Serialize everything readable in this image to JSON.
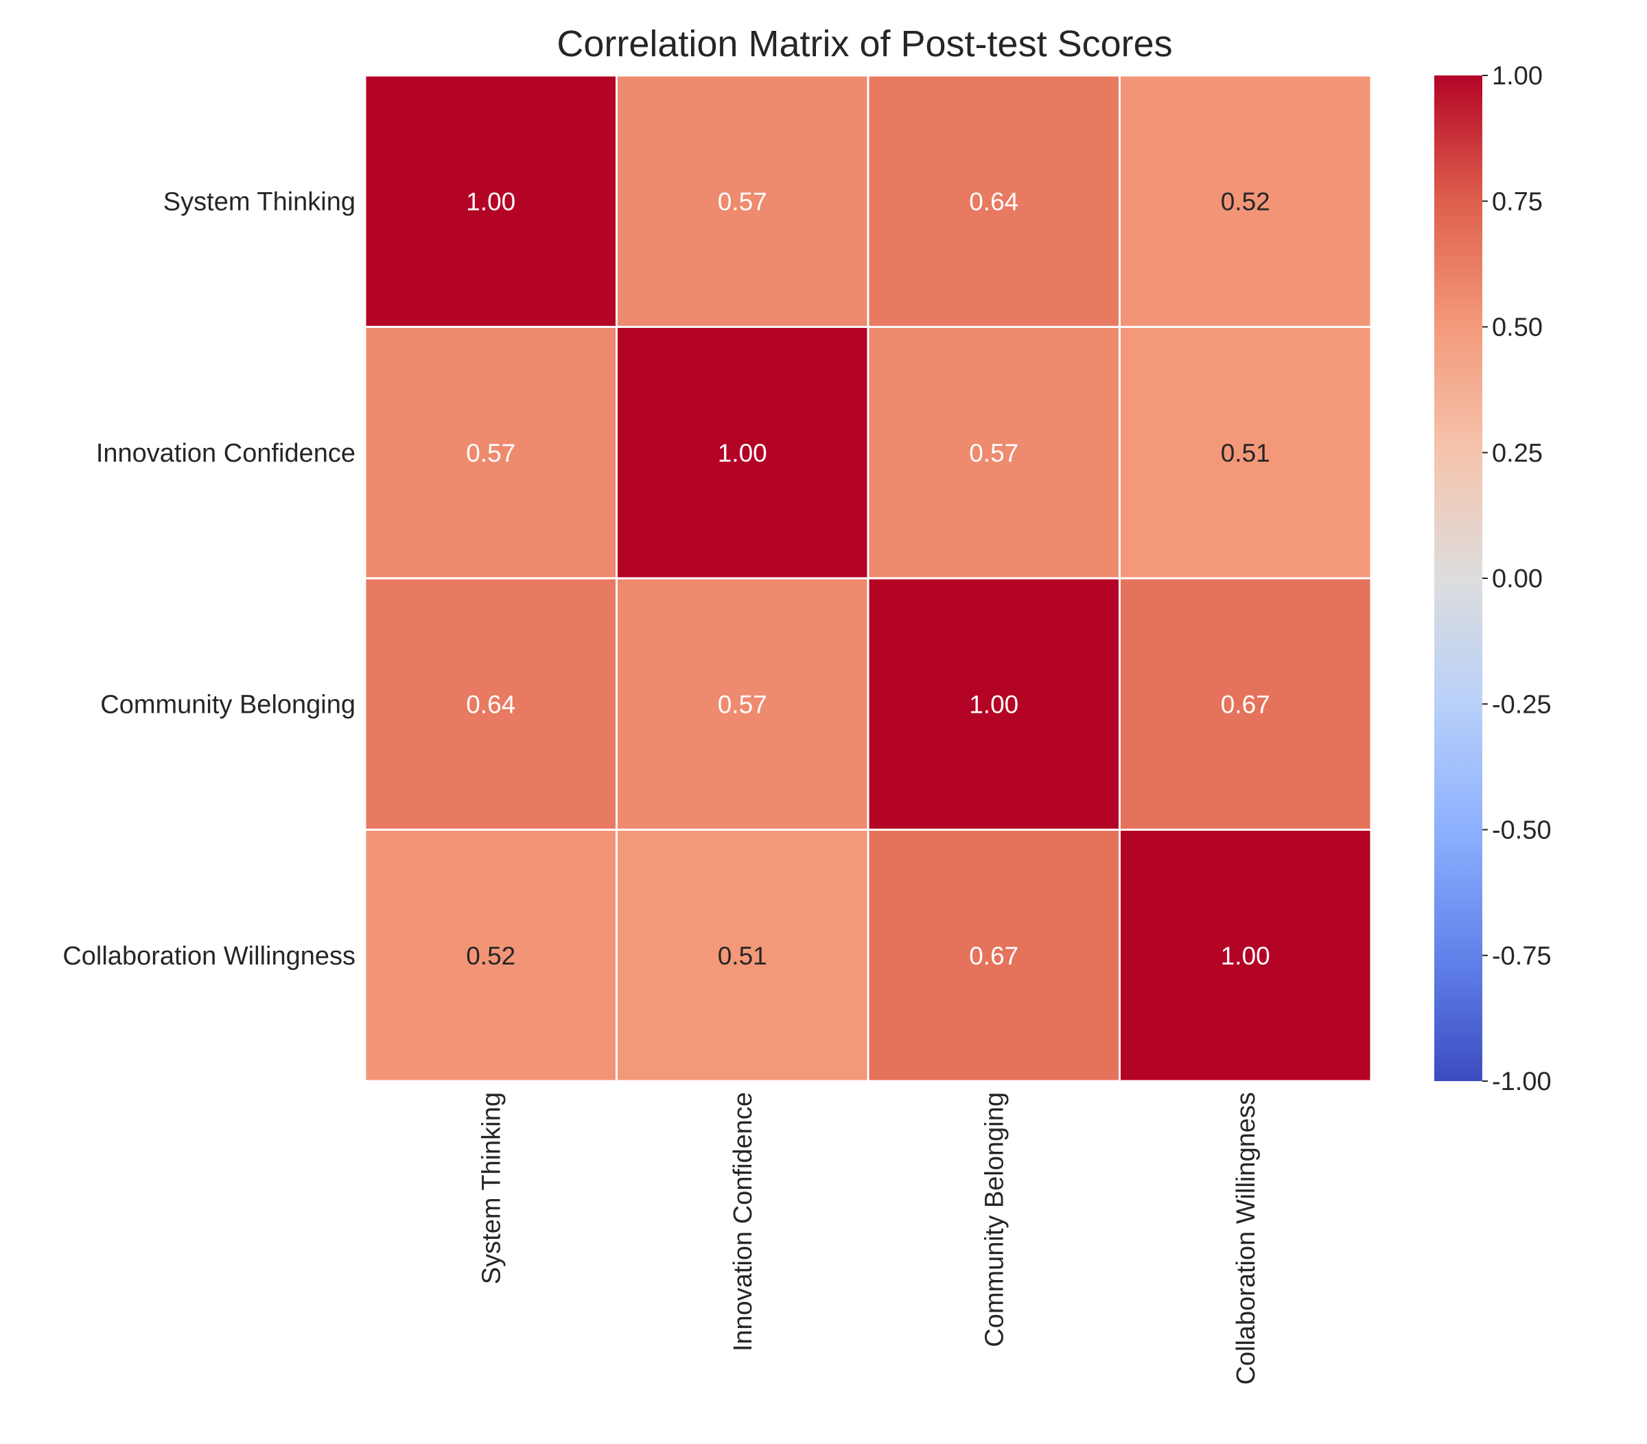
{
  "chart_data": {
    "type": "heatmap",
    "title": "Correlation Matrix of Post-test Scores",
    "rows": [
      "System Thinking",
      "Innovation Confidence",
      "Community Belonging",
      "Collaboration Willingness"
    ],
    "columns": [
      "System Thinking",
      "Innovation Confidence",
      "Community Belonging",
      "Collaboration Willingness"
    ],
    "values": [
      [
        1.0,
        0.57,
        0.64,
        0.52
      ],
      [
        0.57,
        1.0,
        0.57,
        0.51
      ],
      [
        0.64,
        0.57,
        1.0,
        0.67
      ],
      [
        0.52,
        0.51,
        0.67,
        1.0
      ]
    ],
    "value_format": "0.00",
    "colorbar": {
      "range": [
        -1.0,
        1.0
      ],
      "ticks": [
        "1.00",
        "0.75",
        "0.50",
        "0.25",
        "0.00",
        "-0.25",
        "-0.50",
        "-0.75",
        "-1.00"
      ],
      "tick_values": [
        1.0,
        0.75,
        0.5,
        0.25,
        0.0,
        -0.25,
        -0.5,
        -0.75,
        -1.0
      ],
      "colormap": "coolwarm",
      "low_color": "#3b4cc0",
      "mid_color": "#dddddd",
      "high_color": "#b40426"
    },
    "cell_border_color": "#ffffff",
    "legend": "colorbar-right"
  }
}
